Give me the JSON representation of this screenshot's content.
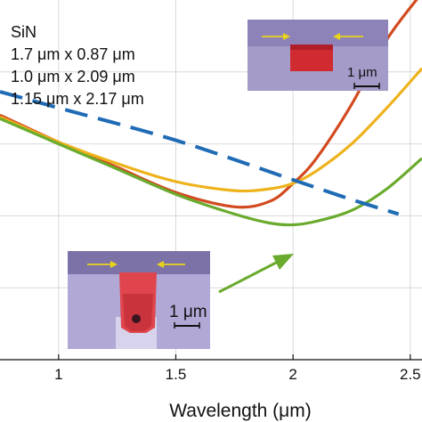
{
  "chart_data": {
    "type": "line",
    "title": "",
    "xlabel": "Wavelength (μm)",
    "ylabel": "",
    "xlim": [
      0.75,
      2.55
    ],
    "ylim": [
      0,
      1
    ],
    "xticks": [
      "1",
      "1.5",
      "2",
      "2.5"
    ],
    "grid": true,
    "legend": {
      "placement": "top-left",
      "heading": "SiN",
      "entries": [
        "1.7 μm x 0.87 μm",
        "1.0 μm x 2.09 μm",
        "1.15 μm x 2.17 μm"
      ]
    },
    "series": [
      {
        "color": "#d24a1f",
        "dash": "solid",
        "x": [
          0.75,
          1.0,
          1.25,
          1.5,
          1.75,
          1.9,
          2.0,
          2.1,
          2.25,
          2.4,
          2.55
        ],
        "y": [
          0.68,
          0.605,
          0.535,
          0.465,
          0.425,
          0.44,
          0.49,
          0.56,
          0.71,
          0.89,
          1.02
        ]
      },
      {
        "color": "#eeb21c",
        "dash": "solid",
        "x": [
          0.75,
          1.0,
          1.25,
          1.5,
          1.75,
          1.9,
          2.0,
          2.1,
          2.25,
          2.4,
          2.55
        ],
        "y": [
          0.675,
          0.605,
          0.545,
          0.495,
          0.47,
          0.475,
          0.49,
          0.525,
          0.6,
          0.7,
          0.81
        ]
      },
      {
        "color": "#6aab2e",
        "dash": "solid",
        "x": [
          0.75,
          1.0,
          1.25,
          1.5,
          1.75,
          1.9,
          2.0,
          2.1,
          2.25,
          2.4,
          2.55
        ],
        "y": [
          0.67,
          0.6,
          0.53,
          0.46,
          0.405,
          0.38,
          0.375,
          0.385,
          0.415,
          0.475,
          0.56
        ]
      },
      {
        "color": "#1f6bb5",
        "dash": "dashed",
        "x": [
          0.75,
          1.0,
          1.5,
          2.0,
          2.25,
          2.45
        ],
        "y": [
          0.745,
          0.7,
          0.61,
          0.5,
          0.445,
          0.405
        ]
      }
    ],
    "insets": [
      {
        "scale_label": "1 μm"
      },
      {
        "scale_label": "1 μm"
      }
    ]
  }
}
